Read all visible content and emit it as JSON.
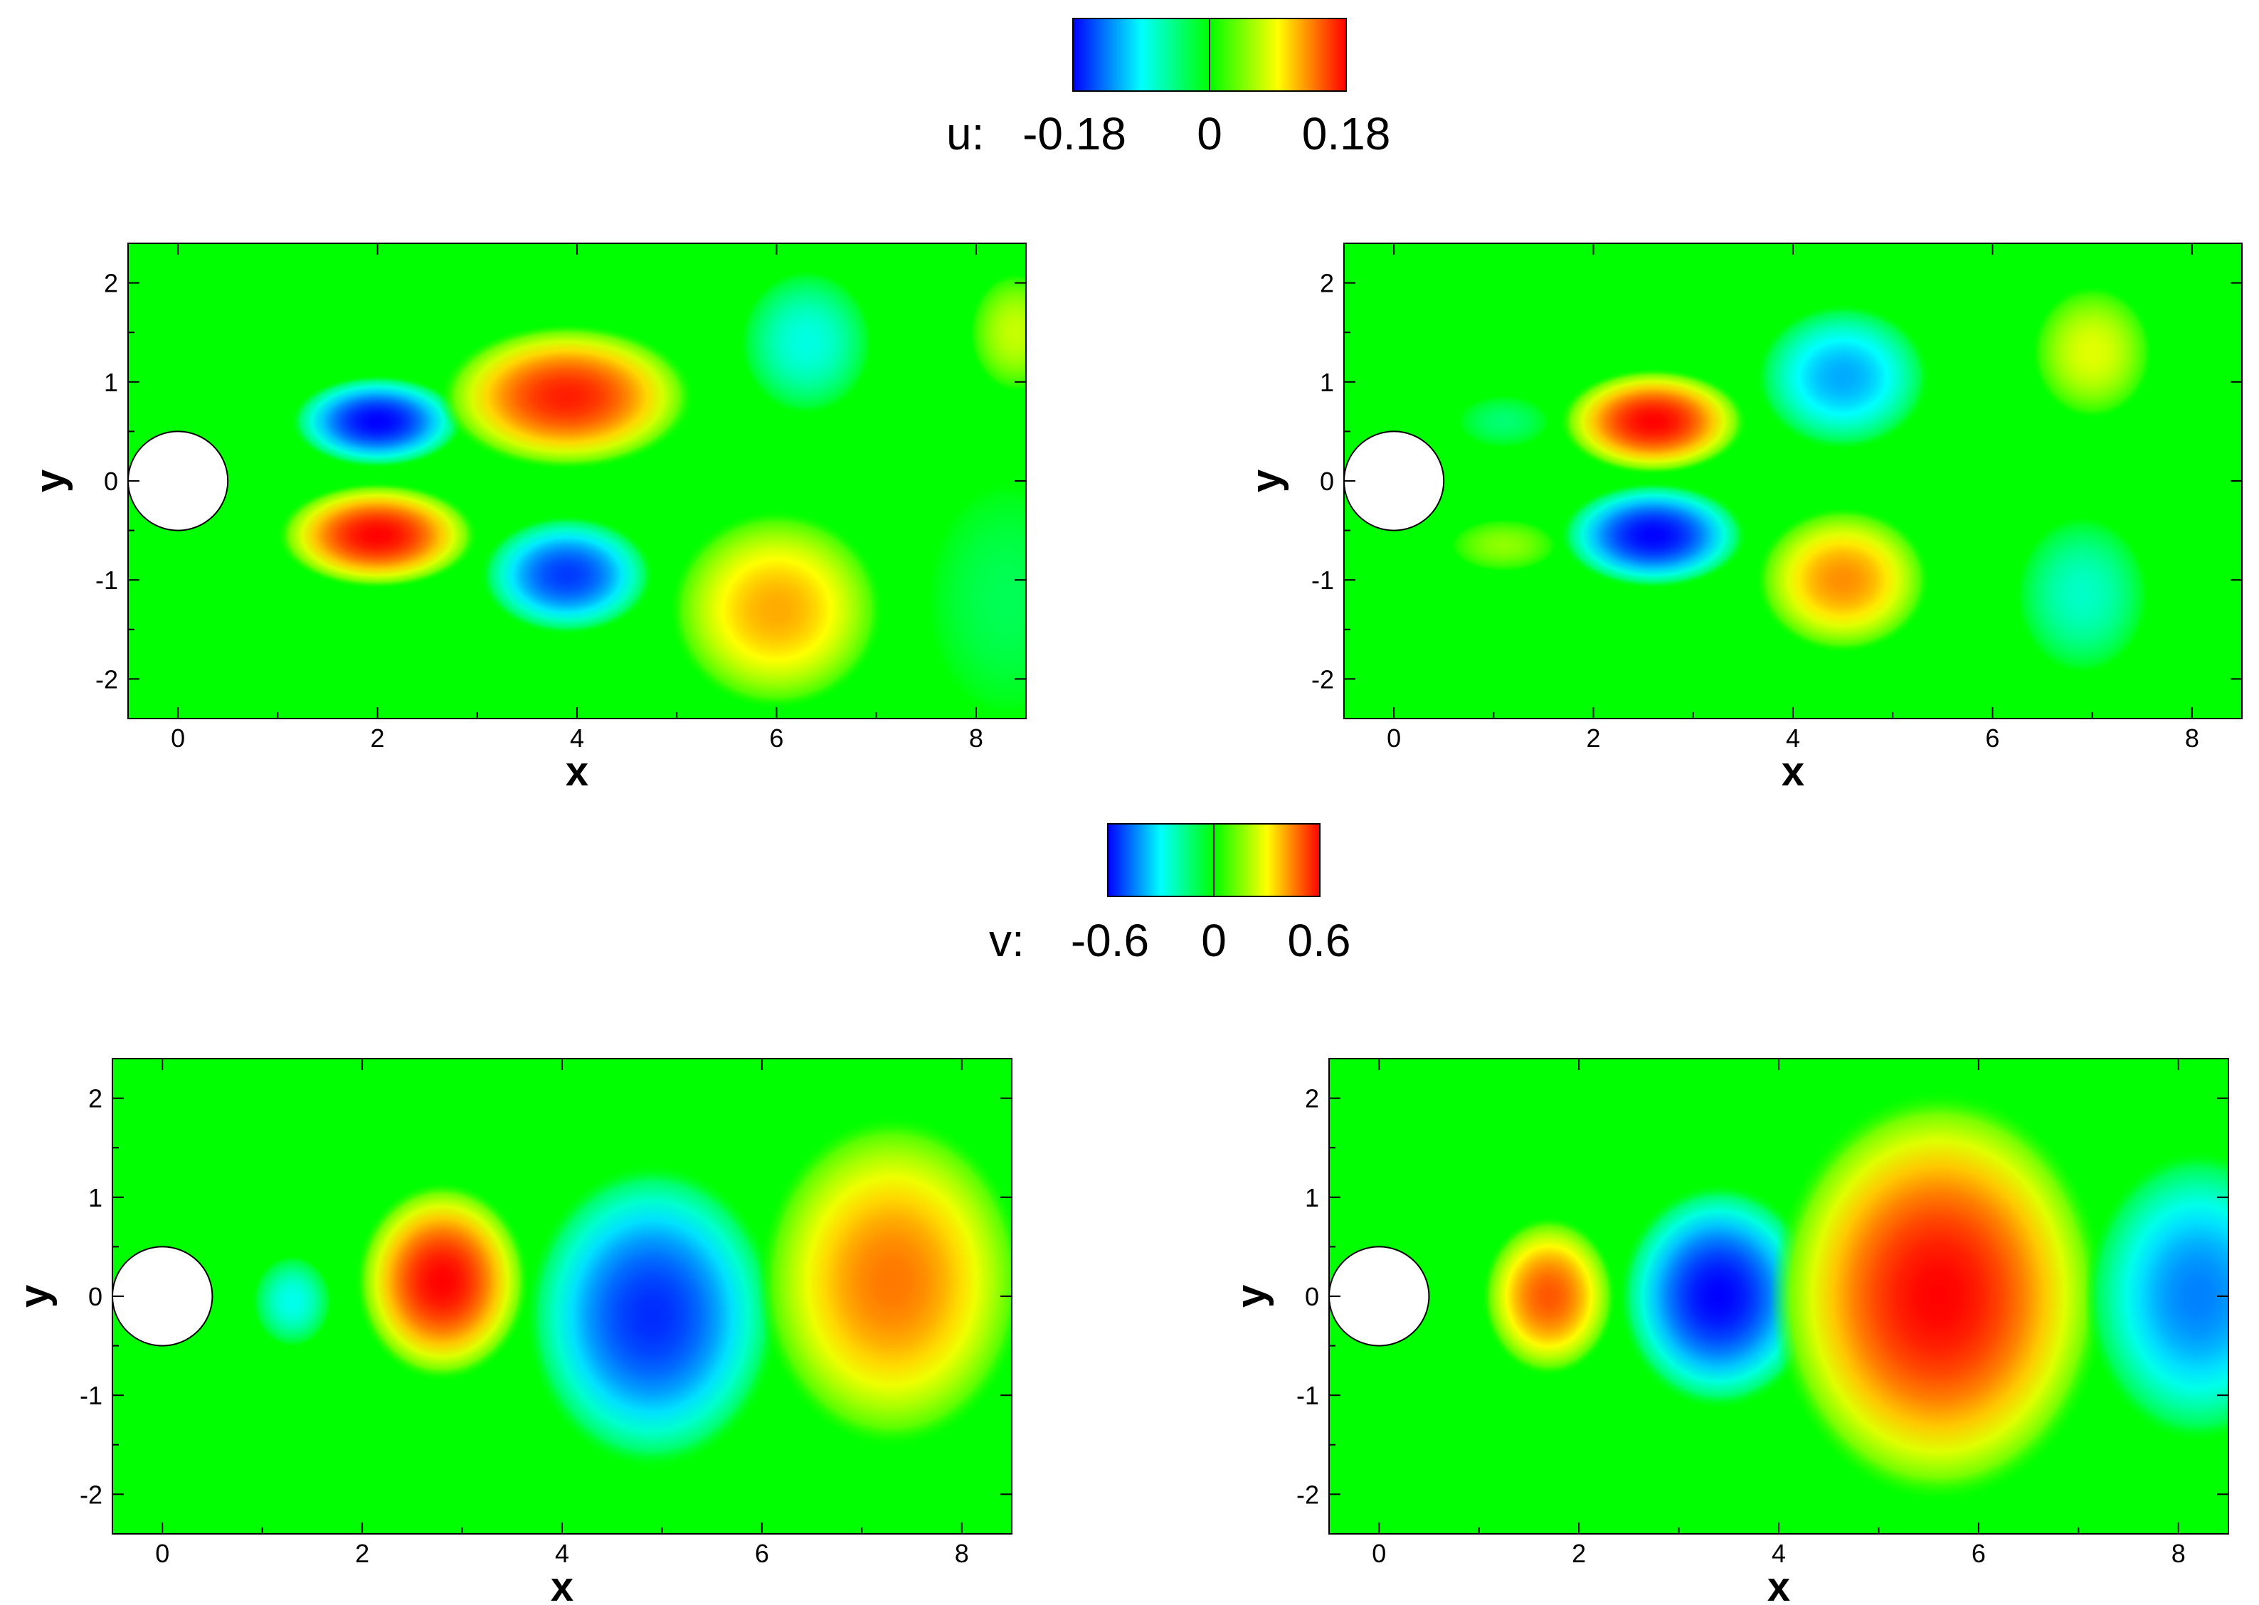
{
  "colorbars": [
    {
      "variable_label": "u:",
      "tick_labels": [
        "-0.18",
        "0",
        "0.18"
      ],
      "vmin": -0.18,
      "vmax": 0.18
    },
    {
      "variable_label": "v:",
      "tick_labels": [
        "-0.6",
        "0",
        "0.6"
      ],
      "vmin": -0.6,
      "vmax": 0.6
    }
  ],
  "colormap": [
    "#0000ff",
    "#00ffff",
    "#00ff00",
    "#ffff00",
    "#ff0000"
  ],
  "chart_data": [
    {
      "type": "heatmap",
      "title": "",
      "variable": "u",
      "xlabel": "x",
      "ylabel": "y",
      "xlim": [
        -0.5,
        8.5
      ],
      "ylim": [
        -2.4,
        2.4
      ],
      "xticks": [
        "0",
        "2",
        "4",
        "6",
        "8"
      ],
      "yticks": [
        "-2",
        "-1",
        "0",
        "1",
        "2"
      ],
      "vmin": -0.18,
      "vmax": 0.18,
      "cylinder": {
        "x": 0,
        "y": 0,
        "radius": 0.5
      },
      "features": [
        {
          "x": 2.0,
          "y": 0.6,
          "value": -0.18,
          "rx": 0.65,
          "ry": 0.35
        },
        {
          "x": 2.0,
          "y": -0.55,
          "value": 0.18,
          "rx": 0.75,
          "ry": 0.4
        },
        {
          "x": 3.9,
          "y": 0.85,
          "value": 0.17,
          "rx": 0.95,
          "ry": 0.55
        },
        {
          "x": 3.9,
          "y": -0.95,
          "value": -0.16,
          "rx": 0.65,
          "ry": 0.45
        },
        {
          "x": 6.0,
          "y": -1.3,
          "value": 0.12,
          "rx": 0.8,
          "ry": 0.75
        },
        {
          "x": 6.3,
          "y": 1.4,
          "value": -0.08,
          "rx": 0.5,
          "ry": 0.55
        },
        {
          "x": 8.4,
          "y": 1.5,
          "value": 0.07,
          "rx": 0.35,
          "ry": 0.45
        },
        {
          "x": 8.3,
          "y": -1.2,
          "value": -0.03,
          "rx": 0.6,
          "ry": 0.9
        }
      ]
    },
    {
      "type": "heatmap",
      "title": "",
      "variable": "u",
      "xlabel": "x",
      "ylabel": "y",
      "xlim": [
        -0.5,
        8.5
      ],
      "ylim": [
        -2.4,
        2.4
      ],
      "xticks": [
        "0",
        "2",
        "4",
        "6",
        "8"
      ],
      "yticks": [
        "-2",
        "-1",
        "0",
        "1",
        "2"
      ],
      "vmin": -0.18,
      "vmax": 0.18,
      "cylinder": {
        "x": 0,
        "y": 0,
        "radius": 0.5
      },
      "features": [
        {
          "x": 1.1,
          "y": 0.6,
          "value": -0.04,
          "rx": 0.35,
          "ry": 0.2
        },
        {
          "x": 1.1,
          "y": -0.65,
          "value": 0.05,
          "rx": 0.4,
          "ry": 0.2
        },
        {
          "x": 2.6,
          "y": 0.6,
          "value": 0.18,
          "rx": 0.7,
          "ry": 0.4
        },
        {
          "x": 2.6,
          "y": -0.55,
          "value": -0.18,
          "rx": 0.7,
          "ry": 0.4
        },
        {
          "x": 4.5,
          "y": 1.05,
          "value": -0.12,
          "rx": 0.65,
          "ry": 0.55
        },
        {
          "x": 4.5,
          "y": -1.0,
          "value": 0.13,
          "rx": 0.65,
          "ry": 0.55
        },
        {
          "x": 7.0,
          "y": 1.3,
          "value": 0.08,
          "rx": 0.45,
          "ry": 0.5
        },
        {
          "x": 6.9,
          "y": -1.15,
          "value": -0.07,
          "rx": 0.5,
          "ry": 0.6
        }
      ]
    },
    {
      "type": "heatmap",
      "title": "",
      "variable": "v",
      "xlabel": "x",
      "ylabel": "y",
      "xlim": [
        -0.5,
        8.5
      ],
      "ylim": [
        -2.4,
        2.4
      ],
      "xticks": [
        "0",
        "2",
        "4",
        "6",
        "8"
      ],
      "yticks": [
        "-2",
        "-1",
        "0",
        "1",
        "2"
      ],
      "vmin": -0.6,
      "vmax": 0.6,
      "cylinder": {
        "x": 0,
        "y": 0,
        "radius": 0.5
      },
      "features": [
        {
          "x": 1.3,
          "y": -0.05,
          "value": -0.28,
          "rx": 0.3,
          "ry": 0.35
        },
        {
          "x": 2.8,
          "y": 0.15,
          "value": 0.6,
          "rx": 0.65,
          "ry": 0.75
        },
        {
          "x": 4.9,
          "y": -0.2,
          "value": -0.55,
          "rx": 0.95,
          "ry": 1.15
        },
        {
          "x": 7.3,
          "y": 0.15,
          "value": 0.46,
          "rx": 1.0,
          "ry": 1.25
        }
      ]
    },
    {
      "type": "heatmap",
      "title": "",
      "variable": "v",
      "xlabel": "x",
      "ylabel": "y",
      "xlim": [
        -0.5,
        8.5
      ],
      "ylim": [
        -2.4,
        2.4
      ],
      "xticks": [
        "0",
        "2",
        "4",
        "6",
        "8"
      ],
      "yticks": [
        "-2",
        "-1",
        "0",
        "1",
        "2"
      ],
      "vmin": -0.6,
      "vmax": 0.6,
      "cylinder": {
        "x": 0,
        "y": 0,
        "radius": 0.5
      },
      "features": [
        {
          "x": 1.7,
          "y": 0.0,
          "value": 0.5,
          "rx": 0.5,
          "ry": 0.6
        },
        {
          "x": 3.4,
          "y": 0.0,
          "value": -0.6,
          "rx": 0.75,
          "ry": 0.85
        },
        {
          "x": 5.6,
          "y": 0.0,
          "value": 0.6,
          "rx": 1.25,
          "ry": 1.55
        },
        {
          "x": 8.2,
          "y": 0.0,
          "value": -0.45,
          "rx": 0.85,
          "ry": 1.1
        }
      ]
    }
  ]
}
